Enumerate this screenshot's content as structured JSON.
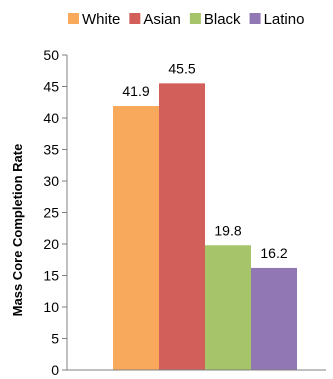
{
  "chart_data": {
    "type": "bar",
    "ylabel": "Mass Core Completion Rate",
    "xlabel": "",
    "ylim": [
      0,
      50
    ],
    "yticks": [
      0,
      5,
      10,
      15,
      20,
      25,
      30,
      35,
      40,
      45,
      50
    ],
    "grid": false,
    "legend_position": "top",
    "series": [
      {
        "name": "White",
        "value": 41.9,
        "label": "41.9",
        "color": "#F8A95B"
      },
      {
        "name": "Asian",
        "value": 45.5,
        "label": "45.5",
        "color": "#D25F5A"
      },
      {
        "name": "Black",
        "value": 19.8,
        "label": "19.8",
        "color": "#A6C46A"
      },
      {
        "name": "Latino",
        "value": 16.2,
        "label": "16.2",
        "color": "#9177B3"
      }
    ]
  }
}
